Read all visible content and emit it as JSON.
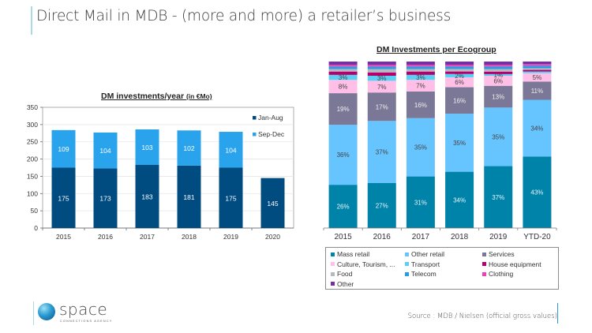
{
  "page": {
    "title": "Direct Mail in MDB  -  (more and more) a retailer’s business",
    "source": "Source : MDB / Nielsen (official gross values)",
    "logo": {
      "name": "space",
      "tagline": "CONNECTIONS AGENCY",
      "icon": "globe-s-icon"
    }
  },
  "chart_data": [
    {
      "type": "bar",
      "stacked": true,
      "title": "DM investments/year",
      "title_unit": "(in €Mo)",
      "categories": [
        "2015",
        "2016",
        "2017",
        "2018",
        "2019",
        "2020"
      ],
      "series": [
        {
          "name": "Jan-Aug",
          "color": "#004b7f",
          "values": [
            175,
            173,
            183,
            181,
            175,
            145
          ]
        },
        {
          "name": "Sep-Dec",
          "color": "#29a3ec",
          "values": [
            109,
            104,
            103,
            102,
            104,
            null
          ]
        }
      ],
      "ylim": [
        0,
        350
      ],
      "yticks": [
        0,
        50,
        100,
        150,
        200,
        250,
        300,
        350
      ],
      "xlabel": "",
      "ylabel": "",
      "grid": true,
      "legend": [
        "Jan-Aug",
        "Sep-Dec"
      ],
      "legend_position": "right"
    },
    {
      "type": "bar",
      "stacked": true,
      "percent": true,
      "title": "DM Investments per Ecogroup",
      "categories": [
        "2015",
        "2016",
        "2017",
        "2018",
        "2019",
        "YTD-20"
      ],
      "series": [
        {
          "name": "Mass retail",
          "color": "#0083a8",
          "values": [
            26,
            27,
            31,
            34,
            37,
            43
          ],
          "labels": [
            "26%",
            "27%",
            "31%",
            "34%",
            "37%",
            "43%"
          ]
        },
        {
          "name": "Other retail",
          "color": "#66c4ff",
          "values": [
            36,
            37,
            35,
            35,
            35,
            34
          ],
          "labels": [
            "36%",
            "37%",
            "35%",
            "35%",
            "35%",
            "34%"
          ]
        },
        {
          "name": "Services",
          "color": "#7b7897",
          "values": [
            19,
            17,
            16,
            16,
            13,
            11
          ],
          "labels": [
            "19%",
            "17%",
            "16%",
            "16%",
            "13%",
            "11%"
          ]
        },
        {
          "name": "Culture, Tourism, ...",
          "color": "#ffbfe6",
          "values": [
            8,
            7,
            7,
            6,
            6,
            5
          ],
          "labels": [
            "8%",
            "7%",
            "7%",
            "6%",
            "6%",
            "5%"
          ]
        },
        {
          "name": "Transport",
          "color": "#5bd0f5",
          "values": [
            3,
            3,
            3,
            2,
            1,
            1
          ],
          "labels": [
            "3%",
            "3%",
            "3%",
            "2%",
            "1%",
            ""
          ]
        },
        {
          "name": "House equipment",
          "color": "#b5006b",
          "values": [
            2,
            2,
            2,
            1.5,
            1.5,
            1
          ],
          "labels": [
            "",
            "",
            "",
            "",
            "",
            ""
          ]
        },
        {
          "name": "Food",
          "color": "#b8b8c4",
          "values": [
            1.5,
            2,
            1.5,
            1.5,
            1.5,
            1
          ],
          "labels": [
            "",
            "",
            "",
            "",
            "",
            ""
          ]
        },
        {
          "name": "Telecom",
          "color": "#2a9be0",
          "values": [
            1.5,
            1.5,
            1.5,
            1.5,
            1.5,
            1.5
          ],
          "labels": [
            "",
            "",
            "",
            "",
            "",
            ""
          ]
        },
        {
          "name": "Clothing",
          "color": "#ee3fb8",
          "values": [
            1,
            1,
            1,
            1,
            1,
            1
          ],
          "labels": [
            "",
            "",
            "",
            "",
            "",
            ""
          ]
        },
        {
          "name": "Other",
          "color": "#7430a0",
          "values": [
            2,
            2,
            2,
            2,
            2,
            1.5
          ],
          "labels": [
            "",
            "",
            "",
            "",
            "",
            ""
          ]
        }
      ],
      "ylim": [
        0,
        100
      ],
      "xlabel": "",
      "ylabel": "",
      "grid": false,
      "legend_position": "bottom"
    }
  ]
}
